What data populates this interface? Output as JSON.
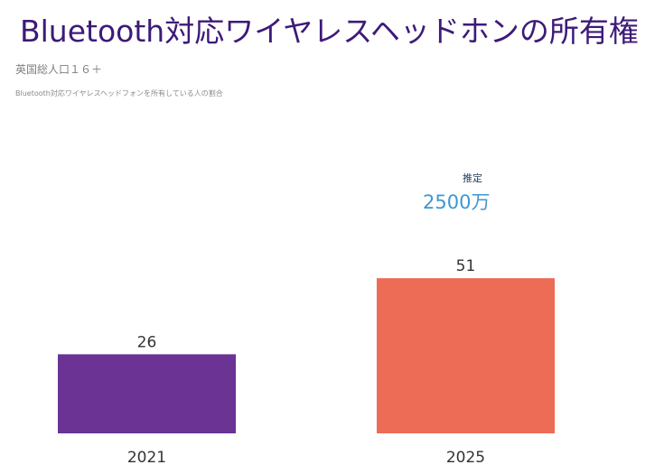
{
  "page": {
    "title": "Bluetooth対応ワイヤレスヘッドホンの所有権",
    "subtitle": "英国総人口１６＋",
    "note": "Bluetooth対応ワイヤレスヘッドフォンを所有している人の割合"
  },
  "callout": {
    "label": "推定",
    "value": "2500万"
  },
  "chart_data": {
    "type": "bar",
    "title": "Bluetooth対応ワイヤレスヘッドホンの所有権",
    "subtitle": "英国総人口１６＋",
    "xlabel": "",
    "ylabel": "",
    "categories": [
      "2021",
      "2025"
    ],
    "values": [
      26,
      51
    ],
    "data_labels": [
      "26",
      "51"
    ],
    "ylim": [
      0,
      51
    ],
    "grid": false,
    "legend": "none",
    "colors": [
      "#6a3394",
      "#ec6c55"
    ]
  },
  "colors": {
    "title": "#3d1a78",
    "callout_value": "#3f97cf",
    "label_text": "#333333"
  }
}
